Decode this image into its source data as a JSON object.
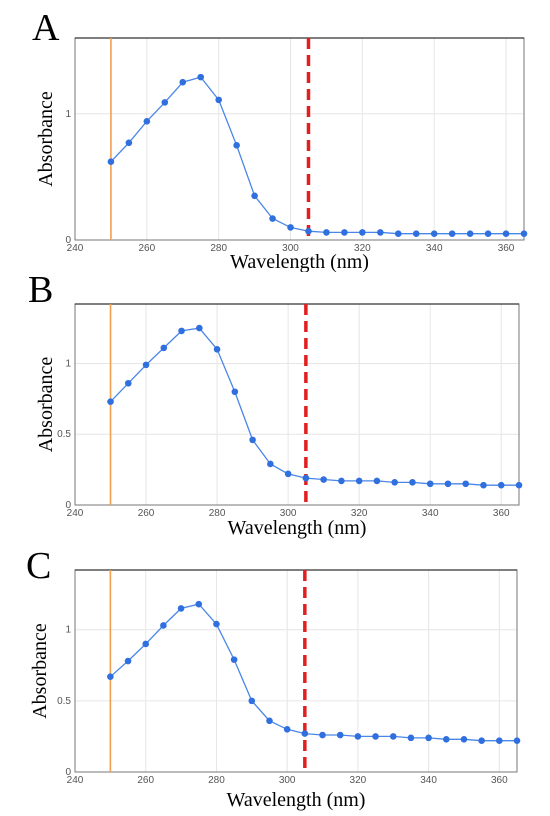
{
  "colors": {
    "series": "#2f6fde",
    "line": "#4a86e8",
    "start_marker": "#f0a050",
    "cutoff_marker": "#e02020"
  },
  "chart_data": [
    {
      "type": "line",
      "panel_label": "A",
      "xlabel": "Wavelength (nm)",
      "ylabel": "Absorbance",
      "xlim": [
        240,
        365
      ],
      "ylim": [
        0,
        1.6
      ],
      "x_ticks": [
        "240",
        "260",
        "280",
        "300",
        "320",
        "340",
        "360"
      ],
      "y_ticks": [
        {
          "value": 0,
          "label": "0"
        },
        {
          "value": 1,
          "label": "1"
        }
      ],
      "x_tick_values": [
        240,
        260,
        280,
        300,
        320,
        340,
        360
      ],
      "vertical_markers": [
        {
          "x": 250,
          "style": "solid",
          "color": "#f0a050"
        },
        {
          "x": 305,
          "style": "dashed",
          "color": "#e02020"
        }
      ],
      "x": [
        250,
        255,
        260,
        265,
        270,
        275,
        280,
        285,
        290,
        295,
        300,
        305,
        310,
        315,
        320,
        325,
        330,
        335,
        340,
        345,
        350,
        355,
        360,
        365
      ],
      "values": [
        0.62,
        0.77,
        0.94,
        1.09,
        1.25,
        1.29,
        1.11,
        0.75,
        0.35,
        0.17,
        0.1,
        0.07,
        0.06,
        0.06,
        0.06,
        0.06,
        0.05,
        0.05,
        0.05,
        0.05,
        0.05,
        0.05,
        0.05,
        0.05
      ]
    },
    {
      "type": "line",
      "panel_label": "B",
      "xlabel": "Wavelength (nm)",
      "ylabel": "Absorbance",
      "xlim": [
        240,
        365
      ],
      "ylim": [
        0,
        1.42
      ],
      "x_ticks": [
        "240",
        "260",
        "280",
        "300",
        "320",
        "340",
        "360"
      ],
      "y_ticks": [
        {
          "value": 0,
          "label": "0"
        },
        {
          "value": 0.5,
          "label": "0.5"
        },
        {
          "value": 1,
          "label": "1"
        }
      ],
      "x_tick_values": [
        240,
        260,
        280,
        300,
        320,
        340,
        360
      ],
      "vertical_markers": [
        {
          "x": 250,
          "style": "solid",
          "color": "#f0a050"
        },
        {
          "x": 305,
          "style": "dashed",
          "color": "#e02020"
        }
      ],
      "x": [
        250,
        255,
        260,
        265,
        270,
        275,
        280,
        285,
        290,
        295,
        300,
        305,
        310,
        315,
        320,
        325,
        330,
        335,
        340,
        345,
        350,
        355,
        360,
        365
      ],
      "values": [
        0.73,
        0.86,
        0.99,
        1.11,
        1.23,
        1.25,
        1.1,
        0.8,
        0.46,
        0.29,
        0.22,
        0.19,
        0.18,
        0.17,
        0.17,
        0.17,
        0.16,
        0.16,
        0.15,
        0.15,
        0.15,
        0.14,
        0.14,
        0.14
      ]
    },
    {
      "type": "line",
      "panel_label": "C",
      "xlabel": "Wavelength (nm)",
      "ylabel": "Absorbance",
      "xlim": [
        240,
        365
      ],
      "ylim": [
        0,
        1.42
      ],
      "x_ticks": [
        "240",
        "260",
        "280",
        "300",
        "320",
        "340",
        "360"
      ],
      "y_ticks": [
        {
          "value": 0,
          "label": "0"
        },
        {
          "value": 0.5,
          "label": "0.5"
        },
        {
          "value": 1,
          "label": "1"
        }
      ],
      "x_tick_values": [
        240,
        260,
        280,
        300,
        320,
        340,
        360
      ],
      "vertical_markers": [
        {
          "x": 250,
          "style": "solid",
          "color": "#f0a050"
        },
        {
          "x": 305,
          "style": "dashed",
          "color": "#e02020"
        }
      ],
      "x": [
        250,
        255,
        260,
        265,
        270,
        275,
        280,
        285,
        290,
        295,
        300,
        305,
        310,
        315,
        320,
        325,
        330,
        335,
        340,
        345,
        350,
        355,
        360,
        365
      ],
      "values": [
        0.67,
        0.78,
        0.9,
        1.03,
        1.15,
        1.18,
        1.04,
        0.79,
        0.5,
        0.36,
        0.3,
        0.27,
        0.26,
        0.26,
        0.25,
        0.25,
        0.25,
        0.24,
        0.24,
        0.23,
        0.23,
        0.22,
        0.22,
        0.22
      ]
    }
  ]
}
